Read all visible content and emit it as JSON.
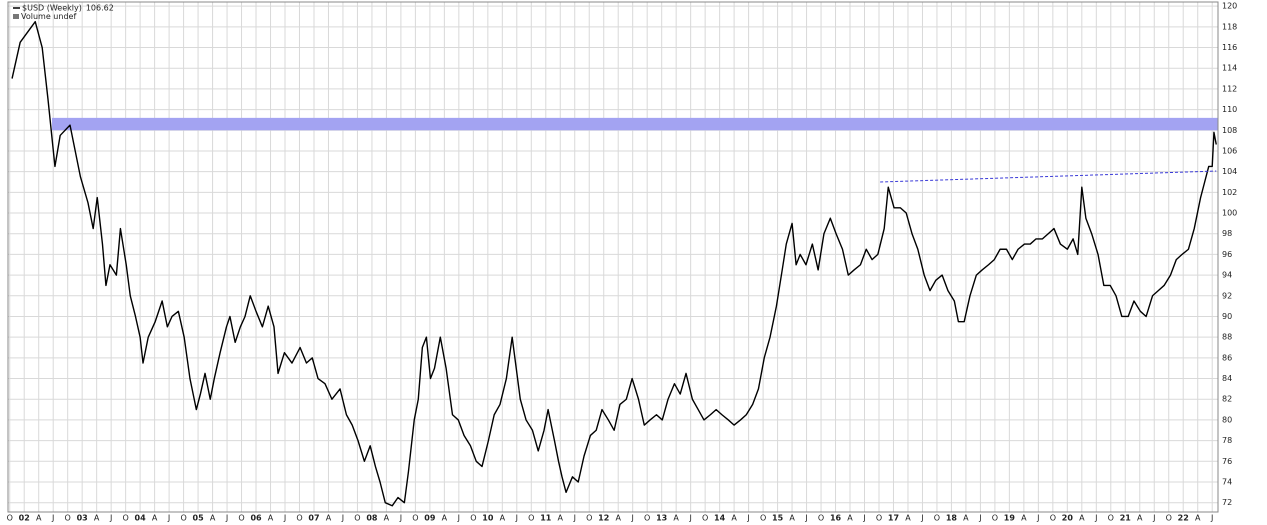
{
  "chart_data": {
    "type": "line",
    "series_label_suffix_value": 106.62,
    "volume_label": "Volume undef",
    "x": [
      2001.79,
      2001.93,
      2002.19,
      2002.31,
      2002.41,
      2002.53,
      2002.62,
      2002.79,
      2002.88,
      2002.97,
      2003.1,
      2003.19,
      2003.26,
      2003.35,
      2003.41,
      2003.48,
      2003.59,
      2003.66,
      2003.76,
      2003.83,
      2003.92,
      2004.0,
      2004.05,
      2004.14,
      2004.26,
      2004.38,
      2004.47,
      2004.55,
      2004.66,
      2004.76,
      2004.86,
      2004.97,
      2005.04,
      2005.12,
      2005.21,
      2005.28,
      2005.38,
      2005.49,
      2005.55,
      2005.64,
      2005.73,
      2005.81,
      2005.9,
      2006.0,
      2006.11,
      2006.21,
      2006.31,
      2006.38,
      2006.49,
      2006.62,
      2006.76,
      2006.87,
      2006.97,
      2007.07,
      2007.19,
      2007.31,
      2007.45,
      2007.56,
      2007.66,
      2007.76,
      2007.87,
      2007.97,
      2008.06,
      2008.14,
      2008.23,
      2008.35,
      2008.45,
      2008.56,
      2008.63,
      2008.73,
      2008.8,
      2008.87,
      2008.94,
      2009.01,
      2009.08,
      2009.18,
      2009.28,
      2009.39,
      2009.49,
      2009.59,
      2009.7,
      2009.8,
      2009.9,
      2010.01,
      2010.11,
      2010.21,
      2010.32,
      2010.42,
      2010.49,
      2010.56,
      2010.66,
      2010.77,
      2010.87,
      2010.97,
      2011.04,
      2011.15,
      2011.22,
      2011.28,
      2011.35,
      2011.46,
      2011.56,
      2011.66,
      2011.77,
      2011.87,
      2011.97,
      2012.08,
      2012.18,
      2012.28,
      2012.39,
      2012.49,
      2012.6,
      2012.7,
      2012.8,
      2012.91,
      2013.01,
      2013.11,
      2013.22,
      2013.32,
      2013.42,
      2013.53,
      2013.63,
      2013.73,
      2013.84,
      2013.94,
      2014.04,
      2014.15,
      2014.25,
      2014.36,
      2014.46,
      2014.57,
      2014.67,
      2014.77,
      2014.87,
      2014.98,
      2015.08,
      2015.15,
      2015.25,
      2015.32,
      2015.39,
      2015.49,
      2015.6,
      2015.7,
      2015.8,
      2015.91,
      2016.01,
      2016.12,
      2016.22,
      2016.32,
      2016.43,
      2016.53,
      2016.63,
      2016.73,
      2016.84,
      2016.91,
      2017.01,
      2017.12,
      2017.22,
      2017.32,
      2017.42,
      2017.53,
      2017.63,
      2017.73,
      2017.84,
      2017.94,
      2018.05,
      2018.12,
      2018.22,
      2018.32,
      2018.43,
      2018.53,
      2018.64,
      2018.74,
      2018.84,
      2018.95,
      2019.05,
      2019.15,
      2019.26,
      2019.36,
      2019.46,
      2019.57,
      2019.67,
      2019.77,
      2019.88,
      2020.0,
      2020.1,
      2020.18,
      2020.25,
      2020.32,
      2020.42,
      2020.53,
      2020.63,
      2020.74,
      2020.84,
      2020.94,
      2021.05,
      2021.15,
      2021.26,
      2021.36,
      2021.47,
      2021.57,
      2021.67,
      2021.78,
      2021.88,
      2021.98,
      2022.09,
      2022.19,
      2022.3,
      2022.37,
      2022.44,
      2022.5,
      2022.53,
      2022.57
    ],
    "series": [
      {
        "name": "$USD (Weekly)",
        "color": "#000000",
        "values": [
          113,
          116.5,
          118.5,
          116,
          111,
          104.5,
          107.5,
          108.5,
          106,
          103.5,
          101,
          98.5,
          101.5,
          97,
          93,
          95,
          94,
          98.5,
          95,
          92,
          90,
          88,
          85.5,
          88,
          89.5,
          91.5,
          89,
          90,
          90.5,
          88,
          84,
          81,
          82.5,
          84.5,
          82,
          84,
          86.5,
          89,
          90,
          87.5,
          89,
          90,
          92,
          90.5,
          89,
          91,
          89,
          84.5,
          86.5,
          85.5,
          87,
          85.5,
          86,
          84,
          83.5,
          82,
          83,
          80.5,
          79.5,
          78,
          76,
          77.5,
          75.5,
          74,
          72,
          71.7,
          72.5,
          72,
          75,
          80,
          82,
          87,
          88,
          84,
          85,
          88,
          85,
          80.5,
          80,
          78.5,
          77.5,
          76,
          75.5,
          78,
          80.5,
          81.5,
          84,
          88,
          85,
          82,
          80,
          79,
          77,
          79,
          81,
          78,
          76,
          74.5,
          73,
          74.5,
          74,
          76.5,
          78.5,
          79,
          81,
          80,
          79,
          81.5,
          82,
          84,
          82,
          79.5,
          80,
          80.5,
          80,
          82,
          83.5,
          82.5,
          84.5,
          82,
          81,
          80,
          80.5,
          81,
          80.5,
          80,
          79.5,
          80,
          80.5,
          81.5,
          83,
          86,
          88,
          91,
          94.5,
          97,
          99,
          95,
          96,
          95,
          97,
          94.5,
          98,
          99.5,
          98,
          96.5,
          94,
          94.5,
          95,
          96.5,
          95.5,
          96,
          98.5,
          102.5,
          100.5,
          100.5,
          100,
          98,
          96.5,
          94,
          92.5,
          93.5,
          94,
          92.5,
          91.5,
          89.5,
          89.5,
          92,
          94,
          94.5,
          95,
          95.5,
          96.5,
          96.5,
          95.5,
          96.5,
          97,
          97,
          97.5,
          97.5,
          98,
          98.5,
          97,
          96.5,
          97.5,
          96,
          102.5,
          99.5,
          98,
          96,
          93,
          93,
          92,
          90,
          90,
          91.5,
          90.5,
          90,
          92,
          92.5,
          93,
          94,
          95.5,
          96,
          96.5,
          98.5,
          101.5,
          103,
          104.5,
          104.5,
          107.8,
          106.62
        ]
      }
    ],
    "bands": [
      {
        "x0": 2002.48,
        "y0": 108,
        "y1": 109.2,
        "color": "#a3a3f2"
      }
    ],
    "trendlines": [
      {
        "x": [
          2016.77,
          2022.57
        ],
        "y": [
          103,
          104.06
        ],
        "color": "#3a3ad8"
      }
    ],
    "xlim": [
      2001.72,
      2022.6
    ],
    "ylim": [
      71.1,
      120.4
    ],
    "grid": true,
    "yticks": [
      72,
      74,
      76,
      78,
      80,
      82,
      84,
      86,
      88,
      90,
      92,
      94,
      96,
      98,
      100,
      102,
      104,
      106,
      108,
      110,
      112,
      114,
      116,
      118,
      120
    ],
    "xticks": [
      {
        "value": 2001.75,
        "label": "O"
      },
      {
        "value": 2002,
        "label": "02"
      },
      {
        "value": 2002.25,
        "label": "A"
      },
      {
        "value": 2002.5,
        "label": "J"
      },
      {
        "value": 2002.75,
        "label": "O"
      },
      {
        "value": 2003,
        "label": "03"
      },
      {
        "value": 2003.25,
        "label": "A"
      },
      {
        "value": 2003.5,
        "label": "J"
      },
      {
        "value": 2003.75,
        "label": "O"
      },
      {
        "value": 2004,
        "label": "04"
      },
      {
        "value": 2004.25,
        "label": "A"
      },
      {
        "value": 2004.5,
        "label": "J"
      },
      {
        "value": 2004.75,
        "label": "O"
      },
      {
        "value": 2005,
        "label": "05"
      },
      {
        "value": 2005.25,
        "label": "A"
      },
      {
        "value": 2005.5,
        "label": "J"
      },
      {
        "value": 2005.75,
        "label": "O"
      },
      {
        "value": 2006,
        "label": "06"
      },
      {
        "value": 2006.25,
        "label": "A"
      },
      {
        "value": 2006.5,
        "label": "J"
      },
      {
        "value": 2006.75,
        "label": "O"
      },
      {
        "value": 2007,
        "label": "07"
      },
      {
        "value": 2007.25,
        "label": "A"
      },
      {
        "value": 2007.5,
        "label": "J"
      },
      {
        "value": 2007.75,
        "label": "O"
      },
      {
        "value": 2008,
        "label": "08"
      },
      {
        "value": 2008.25,
        "label": "A"
      },
      {
        "value": 2008.5,
        "label": "J"
      },
      {
        "value": 2008.75,
        "label": "O"
      },
      {
        "value": 2009,
        "label": "09"
      },
      {
        "value": 2009.25,
        "label": "A"
      },
      {
        "value": 2009.5,
        "label": "J"
      },
      {
        "value": 2009.75,
        "label": "O"
      },
      {
        "value": 2010,
        "label": "10"
      },
      {
        "value": 2010.25,
        "label": "A"
      },
      {
        "value": 2010.5,
        "label": "J"
      },
      {
        "value": 2010.75,
        "label": "O"
      },
      {
        "value": 2011,
        "label": "11"
      },
      {
        "value": 2011.25,
        "label": "A"
      },
      {
        "value": 2011.5,
        "label": "J"
      },
      {
        "value": 2011.75,
        "label": "O"
      },
      {
        "value": 2012,
        "label": "12"
      },
      {
        "value": 2012.25,
        "label": "A"
      },
      {
        "value": 2012.5,
        "label": "J"
      },
      {
        "value": 2012.75,
        "label": "O"
      },
      {
        "value": 2013,
        "label": "13"
      },
      {
        "value": 2013.25,
        "label": "A"
      },
      {
        "value": 2013.5,
        "label": "J"
      },
      {
        "value": 2013.75,
        "label": "O"
      },
      {
        "value": 2014,
        "label": "14"
      },
      {
        "value": 2014.25,
        "label": "A"
      },
      {
        "value": 2014.5,
        "label": "J"
      },
      {
        "value": 2014.75,
        "label": "O"
      },
      {
        "value": 2015,
        "label": "15"
      },
      {
        "value": 2015.25,
        "label": "A"
      },
      {
        "value": 2015.5,
        "label": "J"
      },
      {
        "value": 2015.75,
        "label": "O"
      },
      {
        "value": 2016,
        "label": "16"
      },
      {
        "value": 2016.25,
        "label": "A"
      },
      {
        "value": 2016.5,
        "label": "J"
      },
      {
        "value": 2016.75,
        "label": "O"
      },
      {
        "value": 2017,
        "label": "17"
      },
      {
        "value": 2017.25,
        "label": "A"
      },
      {
        "value": 2017.5,
        "label": "J"
      },
      {
        "value": 2017.75,
        "label": "O"
      },
      {
        "value": 2018,
        "label": "18"
      },
      {
        "value": 2018.25,
        "label": "A"
      },
      {
        "value": 2018.5,
        "label": "J"
      },
      {
        "value": 2018.75,
        "label": "O"
      },
      {
        "value": 2019,
        "label": "19"
      },
      {
        "value": 2019.25,
        "label": "A"
      },
      {
        "value": 2019.5,
        "label": "J"
      },
      {
        "value": 2019.75,
        "label": "O"
      },
      {
        "value": 2020,
        "label": "20"
      },
      {
        "value": 2020.25,
        "label": "A"
      },
      {
        "value": 2020.5,
        "label": "J"
      },
      {
        "value": 2020.75,
        "label": "O"
      },
      {
        "value": 2021,
        "label": "21"
      },
      {
        "value": 2021.25,
        "label": "A"
      },
      {
        "value": 2021.5,
        "label": "J"
      },
      {
        "value": 2021.75,
        "label": "O"
      },
      {
        "value": 2022,
        "label": "22"
      },
      {
        "value": 2022.25,
        "label": "A"
      },
      {
        "value": 2022.5,
        "label": "J"
      }
    ]
  }
}
